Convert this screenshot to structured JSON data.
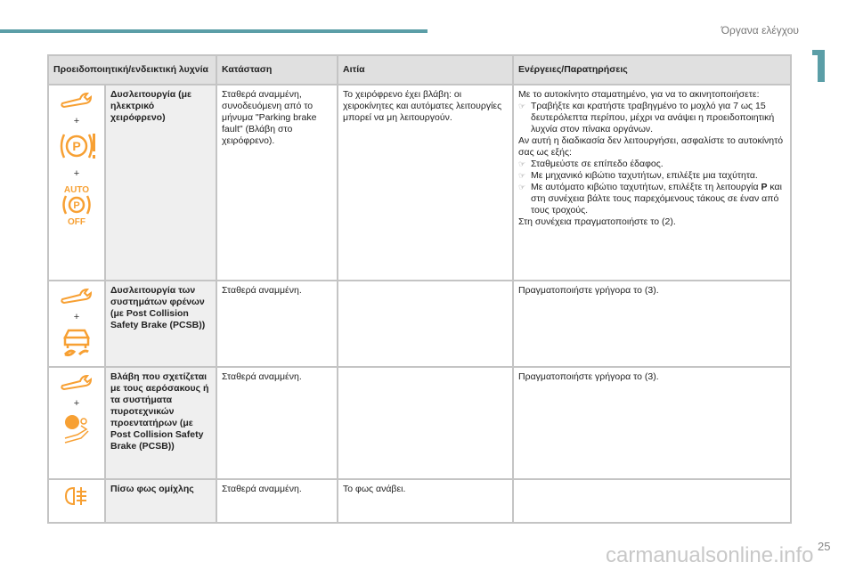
{
  "header": {
    "section": "Όργανα ελέγχου",
    "chapter": "1"
  },
  "page_number": "25",
  "watermark": "carmanualsonline.info",
  "colors": {
    "accent": "#5b9ea7",
    "icon": "#f7a033"
  },
  "table": {
    "headers": [
      "Προειδοποιητική/ενδεικτική λυχνία",
      "Κατάσταση",
      "Αιτία",
      "Ενέργειες/Παρατηρήσεις"
    ],
    "rows": [
      {
        "icons": [
          "wrench-icon",
          "parking-brake-warning-icon",
          "auto-parking-off-icon"
        ],
        "name": "Δυσλειτουργία (με ηλεκτρικό χειρόφρενο)",
        "state": "Σταθερά αναμμένη, συνοδευόμενη από το μήνυμα \"Parking brake fault\" (Βλάβη στο χειρόφρενο).",
        "cause": "Το χειρόφρενο έχει βλάβη: οι χειροκίνητες και αυτόματες λειτουργίες μπορεί να μη λειτουργούν.",
        "actions": {
          "intro": "Με το αυτοκίνητο σταματημένο, για να το ακινητοποιήσετε:",
          "step1": "Τραβήξτε και κρατήστε τραβηγμένο το μοχλό για 7 ως 15 δευτερόλεπτα περίπου, μέχρι να ανάψει η προειδοποιητική λυχνία στον πίνακα οργάνων.",
          "mid": "Αν αυτή η διαδικασία δεν λειτουργήσει, ασφαλίστε το αυτοκίνητό σας ως εξής:",
          "step2": "Σταθμεύστε σε επίπεδο έδαφος.",
          "step3": "Με μηχανικό κιβώτιο ταχυτήτων, επιλέξτε μια ταχύτητα.",
          "step4a": "Με αυτόματο κιβώτιο ταχυτήτων, επιλέξτε τη λειτουργία ",
          "step4b": "P",
          "step4c": " και στη συνέχεια βάλτε τους παρεχόμενους τάκους σε έναν από τους τροχούς.",
          "outro": "Στη συνέχεια πραγματοποιήστε το (2)."
        }
      },
      {
        "icons": [
          "wrench-icon",
          "skid-car-icon"
        ],
        "name": "Δυσλειτουργία των συστημάτων φρένων (με Post Collision Safety Brake (PCSB))",
        "state": "Σταθερά αναμμένη.",
        "cause": "",
        "action": "Πραγματοποιήστε γρήγορα το (3)."
      },
      {
        "icons": [
          "wrench-icon",
          "airbag-icon"
        ],
        "name": "Βλάβη που σχετίζεται με τους αερόσακους ή τα συστήματα πυροτεχνικών προεντατήρων (με Post Collision Safety Brake (PCSB))",
        "state": "Σταθερά αναμμένη.",
        "cause": "",
        "action": "Πραγματοποιήστε γρήγορα το (3)."
      },
      {
        "icons": [
          "rear-fog-light-icon"
        ],
        "name": "Πίσω φως ομίχλης",
        "state": "Σταθερά αναμμένη.",
        "cause": "Το φως ανάβει.",
        "action": ""
      }
    ]
  }
}
